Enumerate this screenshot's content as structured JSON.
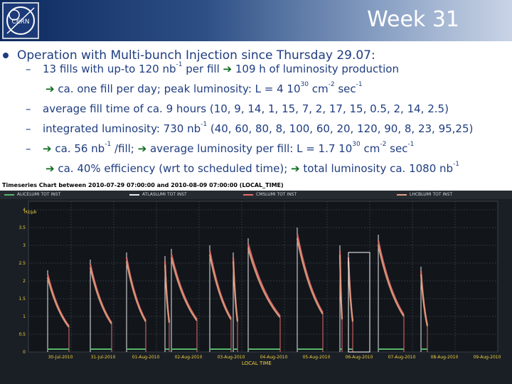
{
  "slide": {
    "title": "Week 31",
    "logo_text": "CERN",
    "bullet": "Operation with Multi-bunch Injection since Thursday 29.07:",
    "lines": [
      {
        "dash": "–",
        "parts": [
          "13 fills with up-to 120 nb",
          "-1",
          " per fill ",
          "➔",
          " 109 h of luminosity production"
        ]
      },
      {
        "dash": "",
        "parts": [
          "➔",
          " ca. one fill per day; peak luminosity: L = 4 10",
          "30",
          " cm",
          "-2",
          " sec",
          "-1"
        ]
      },
      {
        "dash": "–",
        "parts": [
          "average fill time of ca. 9 hours (10, 9, 14, 1, 15, 7, 2, 17, 15, 0.5, 2, 14, 2.5)"
        ]
      },
      {
        "dash": "–",
        "parts": [
          "integrated luminosity: 730 nb",
          "-1",
          " (40, 60, 80, 8, 100, 60, 20, 120, 90, 8, 23, 95,25)"
        ]
      },
      {
        "dash": "–",
        "parts": [
          "➔",
          " ca. 56 nb",
          "-1",
          " /fill; ",
          "➔",
          " average luminosity per fill: L = 1.7 10",
          "30",
          " cm",
          "-2",
          " sec",
          "-1"
        ]
      },
      {
        "dash": "",
        "parts": [
          "➔",
          " ca. 40% efficiency (wrt to scheduled time); ",
          "➔",
          " total luminosity ca. 1080 nb",
          "-1"
        ]
      }
    ]
  },
  "chart": {
    "title": "Timeseries Chart between 2010-07-29 07:00:00 and 2010-08-09 07:00:00 (LOCAL_TIME)",
    "legend": [
      {
        "label": "ALICELUMI TOT INST",
        "color": "#56b66b"
      },
      {
        "label": "ATLASLUMI TOT INST",
        "color": "#e8e8e8"
      },
      {
        "label": "CMSLUMI TOT INST",
        "color": "#e86a6a"
      },
      {
        "label": "LHCBLUMI TOT INST",
        "color": "#e0a080"
      }
    ],
    "ylabel": "Hz/µb",
    "xlabel": "LOCAL TIME",
    "yticks": [
      "4",
      "3.5",
      "3",
      "2.5",
      "2",
      "1.5",
      "1",
      "0.5",
      "0"
    ],
    "xticks": [
      "30-Jul-2010",
      "31-Jul-2010",
      "01-Aug-2010",
      "02-Aug-2010",
      "03-Aug-2010",
      "04-Aug-2010",
      "05-Aug-2010",
      "06-Aug-2010",
      "07-Aug-2010",
      "08-Aug-2010",
      "09-Aug-2010"
    ]
  },
  "chart_data": {
    "type": "line",
    "title": "Timeseries Chart between 2010-07-29 07:00:00 and 2010-08-09 07:00:00 (LOCAL_TIME)",
    "xlabel": "LOCAL TIME",
    "ylabel": "Hz/µb",
    "ylim": [
      0,
      4
    ],
    "x_range": [
      "2010-07-29 07:00",
      "2010-08-09 07:00"
    ],
    "fills": [
      {
        "start_day": 0.45,
        "end_day": 0.95,
        "peak": 2.3
      },
      {
        "start_day": 1.45,
        "end_day": 1.95,
        "peak": 2.6
      },
      {
        "start_day": 2.3,
        "end_day": 2.75,
        "peak": 2.8
      },
      {
        "start_day": 3.2,
        "end_day": 3.3,
        "peak": 2.7
      },
      {
        "start_day": 3.35,
        "end_day": 3.95,
        "peak": 2.9
      },
      {
        "start_day": 4.25,
        "end_day": 4.75,
        "peak": 3.0
      },
      {
        "start_day": 4.8,
        "end_day": 4.9,
        "peak": 2.8
      },
      {
        "start_day": 5.15,
        "end_day": 5.9,
        "peak": 3.2
      },
      {
        "start_day": 6.3,
        "end_day": 6.9,
        "peak": 3.5
      },
      {
        "start_day": 7.3,
        "end_day": 7.35,
        "peak": 3.0
      },
      {
        "start_day": 7.5,
        "end_day": 7.6,
        "peak": 2.8
      },
      {
        "start_day": 8.2,
        "end_day": 8.8,
        "peak": 3.3
      },
      {
        "start_day": 9.2,
        "end_day": 9.35,
        "peak": 2.4
      }
    ],
    "series": [
      {
        "name": "ALICELUMI TOT INST",
        "color": "#56b66b"
      },
      {
        "name": "ATLASLUMI TOT INST",
        "color": "#e8e8e8"
      },
      {
        "name": "CMSLUMI TOT INST",
        "color": "#e86a6a"
      },
      {
        "name": "LHCBLUMI TOT INST",
        "color": "#e0a080"
      }
    ]
  }
}
